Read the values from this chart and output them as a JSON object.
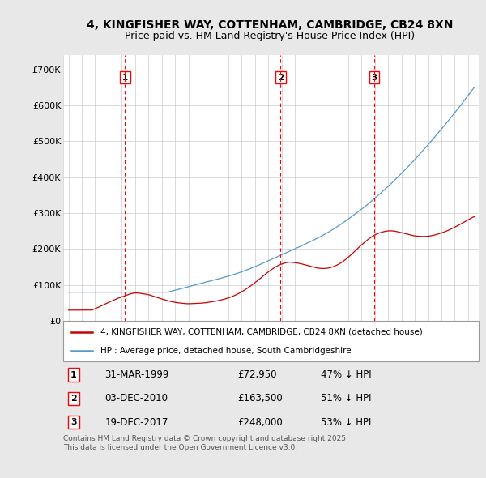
{
  "title": "4, KINGFISHER WAY, COTTENHAM, CAMBRIDGE, CB24 8XN",
  "subtitle": "Price paid vs. HM Land Registry's House Price Index (HPI)",
  "title_fontsize": 10,
  "subtitle_fontsize": 9,
  "ylabel_ticks": [
    "£0",
    "£100K",
    "£200K",
    "£300K",
    "£400K",
    "£500K",
    "£600K",
    "£700K"
  ],
  "ytick_values": [
    0,
    100000,
    200000,
    300000,
    400000,
    500000,
    600000,
    700000
  ],
  "ylim": [
    0,
    740000
  ],
  "xlim_start": 1994.6,
  "xlim_end": 2025.8,
  "background_color": "#e8e8e8",
  "plot_bg_color": "#ffffff",
  "red_line_color": "#cc0000",
  "blue_line_color": "#5599cc",
  "transaction_markers": [
    {
      "year": 1999.25,
      "price": 72950,
      "label": "1"
    },
    {
      "year": 2010.92,
      "price": 163500,
      "label": "2"
    },
    {
      "year": 2017.97,
      "price": 248000,
      "label": "3"
    }
  ],
  "legend_entries": [
    "4, KINGFISHER WAY, COTTENHAM, CAMBRIDGE, CB24 8XN (detached house)",
    "HPI: Average price, detached house, South Cambridgeshire"
  ],
  "table_rows": [
    {
      "num": "1",
      "date": "31-MAR-1999",
      "price": "£72,950",
      "pct": "47% ↓ HPI"
    },
    {
      "num": "2",
      "date": "03-DEC-2010",
      "price": "£163,500",
      "pct": "51% ↓ HPI"
    },
    {
      "num": "3",
      "date": "19-DEC-2017",
      "price": "£248,000",
      "pct": "53% ↓ HPI"
    }
  ],
  "footer": "Contains HM Land Registry data © Crown copyright and database right 2025.\nThis data is licensed under the Open Government Licence v3.0."
}
